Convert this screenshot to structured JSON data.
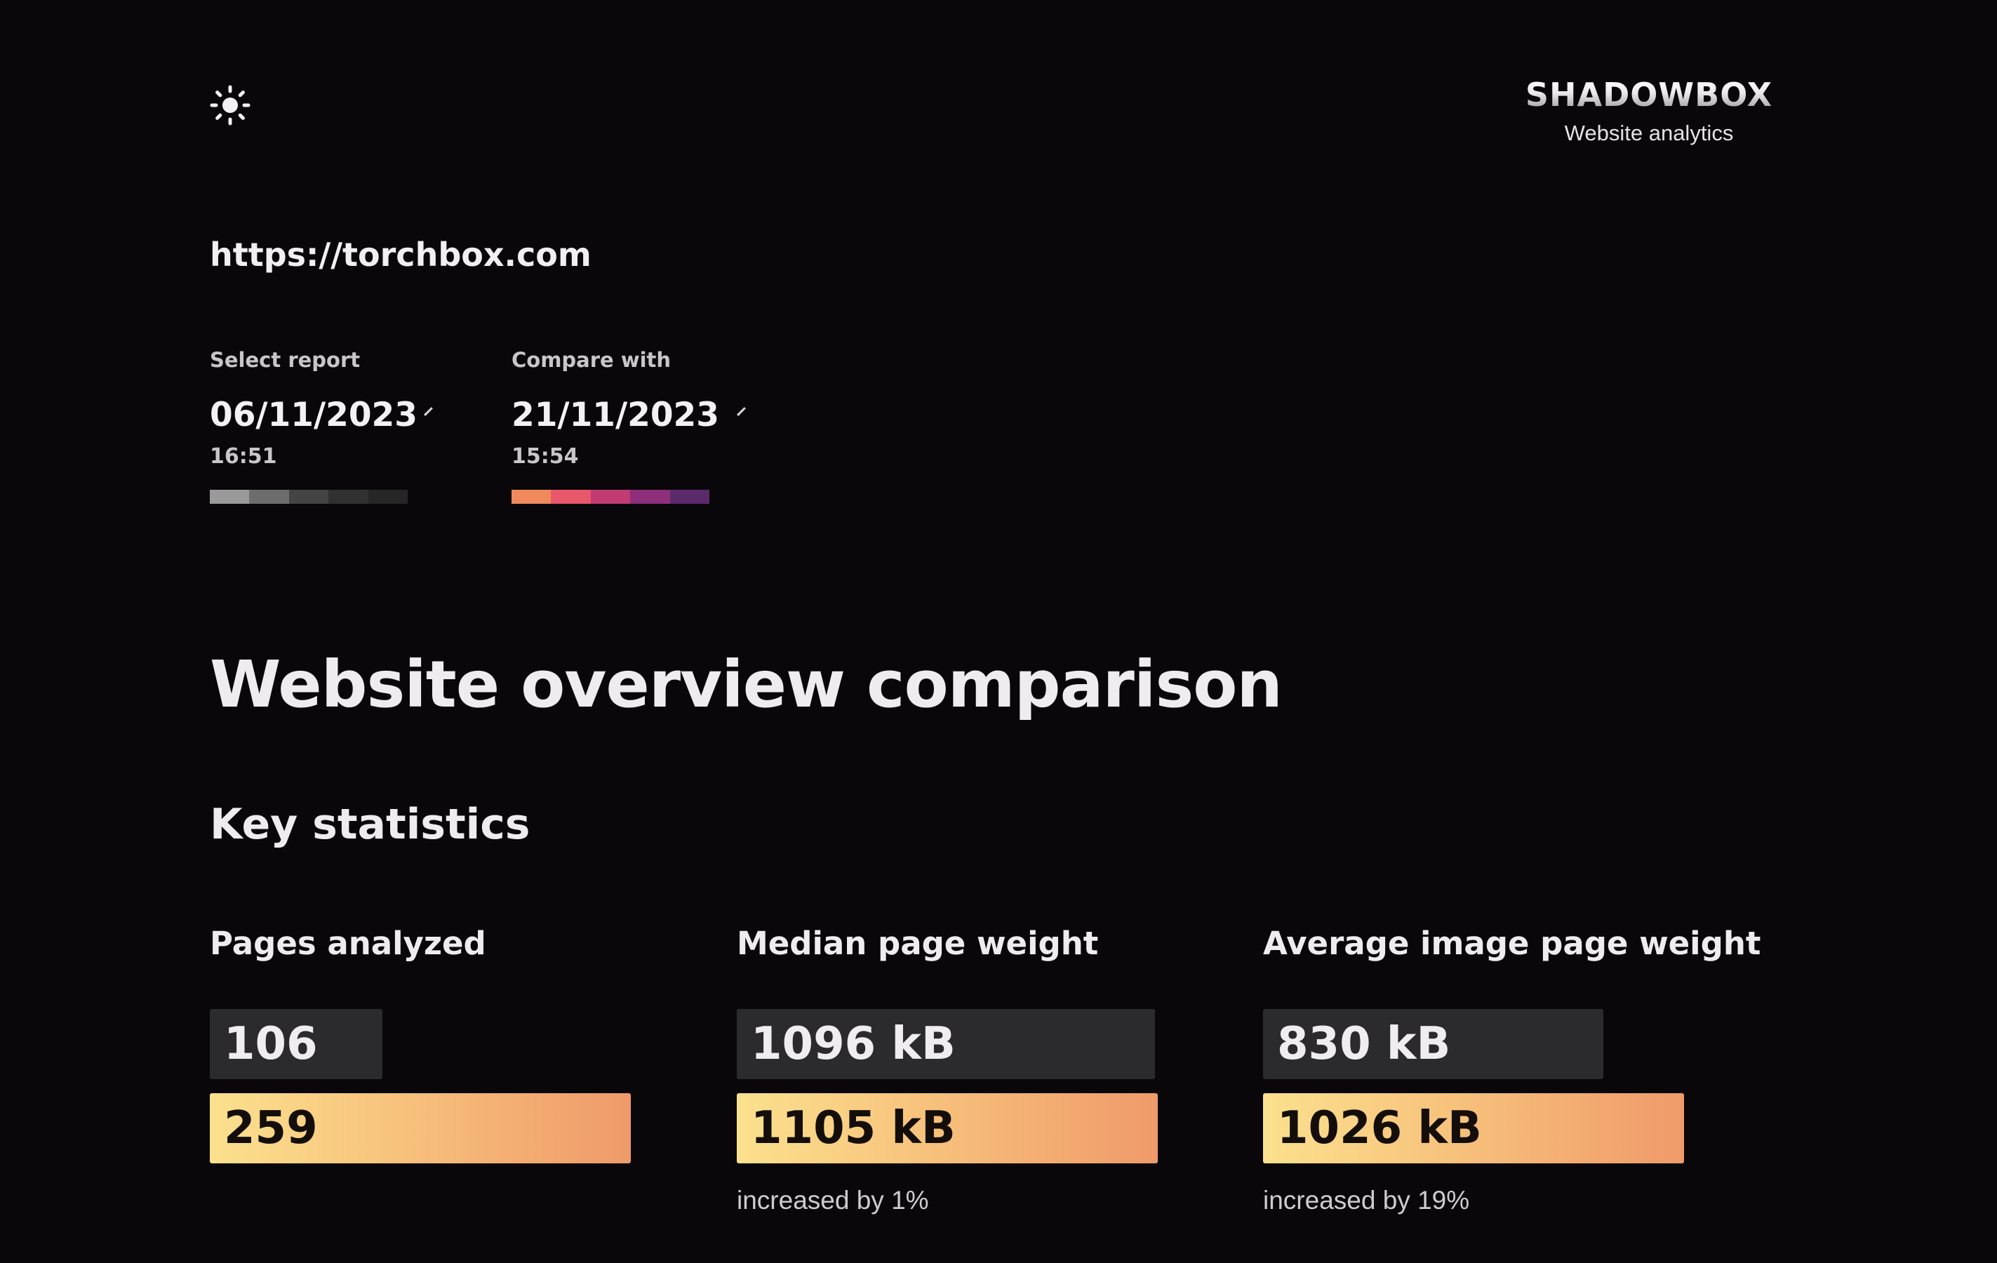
{
  "header": {
    "theme_icon": "sun-icon",
    "brand_name": "SHADOWBOX",
    "brand_tagline": "Website analytics"
  },
  "site": {
    "url": "https://torchbox.com"
  },
  "report_select": {
    "label": "Select report",
    "date": "06/11/2023",
    "time": "16:51",
    "swatches": [
      "#9a9a9a",
      "#6d6d6d",
      "#444444",
      "#313131",
      "#262626"
    ]
  },
  "compare_select": {
    "label": "Compare with",
    "date": "21/11/2023",
    "time": "15:54",
    "swatches": [
      "#f08a5d",
      "#e8586a",
      "#c13c73",
      "#8d2f7a",
      "#5b2a6b"
    ]
  },
  "page_title": "Website overview comparison",
  "section_title": "Key statistics",
  "stats": [
    {
      "title": "Pages analyzed",
      "old_value": "106",
      "new_value": "259",
      "change": ""
    },
    {
      "title": "Median page weight",
      "old_value": "1096 kB",
      "new_value": "1105 kB",
      "change": "increased by 1%"
    },
    {
      "title": "Average image page weight",
      "old_value": "830 kB",
      "new_value": "1026 kB",
      "change": "increased by 19%"
    }
  ],
  "colors": {
    "background": "#0a070b",
    "old_bar": "#2b2a2c",
    "new_bar_gradient_start": "#fbe18e",
    "new_bar_gradient_end": "#ef9a6a"
  }
}
